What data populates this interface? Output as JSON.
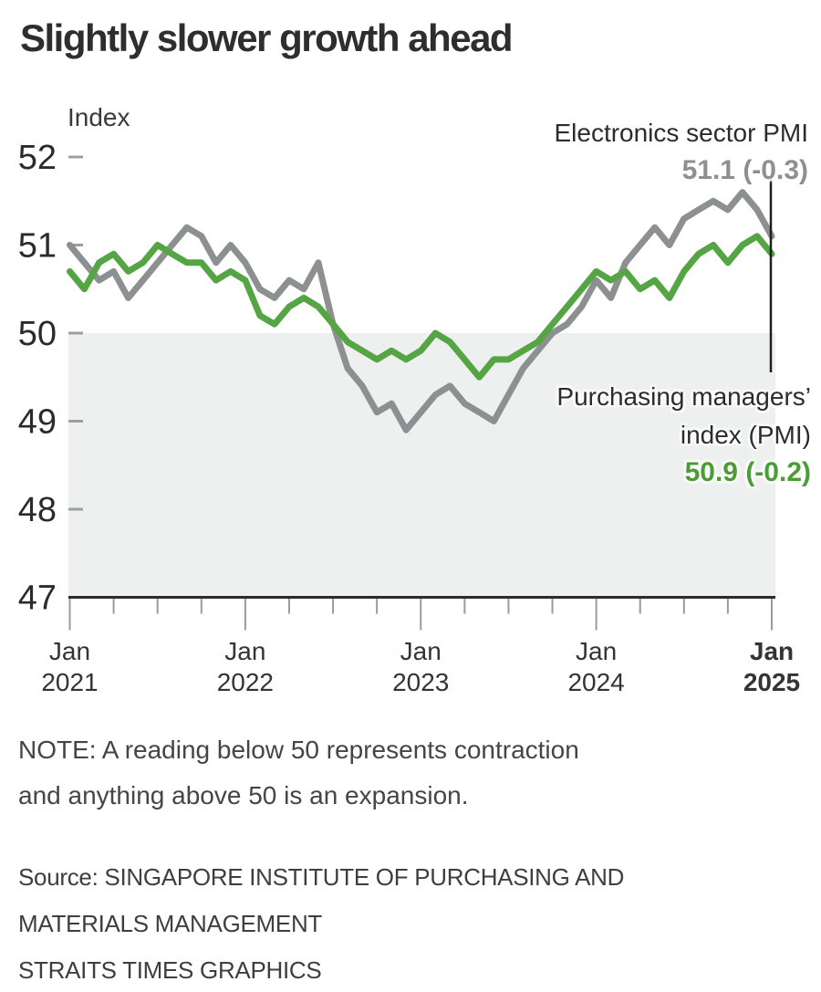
{
  "title": "Slightly slower growth ahead",
  "chart_data": {
    "type": "line",
    "title": "Slightly slower growth ahead",
    "ylabel": "Index",
    "ylim": [
      47,
      52
    ],
    "yticks": [
      52,
      51,
      50,
      49,
      48,
      47
    ],
    "x_start": "Jan 2021",
    "x_end": "Jan 2025",
    "x_interval": "monthly",
    "x_minor_tick_interval": "quarterly",
    "grid": false,
    "legend_position": "annotations on chart",
    "x_major_ticks": [
      {
        "month": "Jan",
        "year": "2021",
        "bold": false
      },
      {
        "month": "Jan",
        "year": "2022",
        "bold": false
      },
      {
        "month": "Jan",
        "year": "2023",
        "bold": false
      },
      {
        "month": "Jan",
        "year": "2024",
        "bold": false
      },
      {
        "month": "Jan",
        "year": "2025",
        "bold": true
      }
    ],
    "shaded_band": {
      "from": 47,
      "to": 50,
      "color": "#edf0ef"
    },
    "series": [
      {
        "name": "Electronics sector PMI",
        "color": "#8d9091",
        "latest_value": 51.1,
        "change": -0.3,
        "values": [
          51.0,
          50.8,
          50.6,
          50.7,
          50.4,
          50.6,
          50.8,
          51.0,
          51.2,
          51.1,
          50.8,
          51.0,
          50.8,
          50.5,
          50.4,
          50.6,
          50.5,
          50.8,
          50.1,
          49.6,
          49.4,
          49.1,
          49.2,
          48.9,
          49.1,
          49.3,
          49.4,
          49.2,
          49.1,
          49.0,
          49.3,
          49.6,
          49.8,
          50.0,
          50.1,
          50.3,
          50.6,
          50.4,
          50.8,
          51.0,
          51.2,
          51.0,
          51.3,
          51.4,
          51.5,
          51.4,
          51.6,
          51.4,
          51.1
        ]
      },
      {
        "name": "Purchasing managers' index (PMI)",
        "color": "#55a545",
        "latest_value": 50.9,
        "change": -0.2,
        "values": [
          50.7,
          50.5,
          50.8,
          50.9,
          50.7,
          50.8,
          51.0,
          50.9,
          50.8,
          50.8,
          50.6,
          50.7,
          50.6,
          50.2,
          50.1,
          50.3,
          50.4,
          50.3,
          50.1,
          49.9,
          49.8,
          49.7,
          49.8,
          49.7,
          49.8,
          50.0,
          49.9,
          49.7,
          49.5,
          49.7,
          49.7,
          49.8,
          49.9,
          50.1,
          50.3,
          50.5,
          50.7,
          50.6,
          50.7,
          50.5,
          50.6,
          50.4,
          50.7,
          50.9,
          51.0,
          50.8,
          51.0,
          51.1,
          50.9
        ]
      }
    ]
  },
  "annotations": {
    "electronics": {
      "label": "Electronics sector PMI",
      "value": "51.1 (-0.3)",
      "color": "#8d9091"
    },
    "pmi": {
      "label_line1": "Purchasing managers’",
      "label_line2": "index (PMI)",
      "value": "50.9 (-0.2)",
      "color": "#4a9c35"
    }
  },
  "note": {
    "line1": "NOTE: A reading below 50 represents contraction",
    "line2": "and anything above 50 is an expansion."
  },
  "source": {
    "line1": "Source: SINGAPORE INSTITUTE OF PURCHASING AND",
    "line2": "MATERIALS MANAGEMENT",
    "line3": "STRAITS TIMES GRAPHICS"
  }
}
